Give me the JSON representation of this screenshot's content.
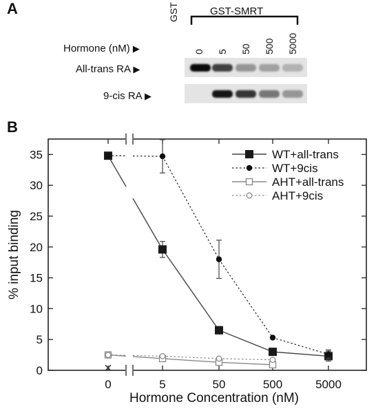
{
  "panelA": {
    "letter": "A",
    "lanes": [
      "GST",
      "0",
      "5",
      "50",
      "500",
      "5000"
    ],
    "group_label": "GST-SMRT",
    "row_labels": [
      "Hormone (nM)",
      "All-trans RA",
      "9-cis RA"
    ],
    "arrow_glyph": "▶",
    "all_trans_band_intensity": [
      0,
      1.0,
      0.75,
      0.35,
      0.3,
      0.22
    ],
    "nine_cis_band_intensity": [
      0,
      0,
      0.95,
      0.8,
      0.5,
      0.35
    ]
  },
  "panelB": {
    "letter": "B"
  },
  "chart_data": {
    "type": "line",
    "xlabel": "Hormone Concentration (nM)",
    "ylabel": "% input binding",
    "categories": [
      "0",
      "5",
      "50",
      "500",
      "5000"
    ],
    "ylim": [
      0,
      37.5
    ],
    "yticks": [
      0,
      5,
      10,
      15,
      20,
      25,
      30,
      35
    ],
    "legend_position": "top-right",
    "axis_break_between": [
      "0",
      "5"
    ],
    "series": [
      {
        "name": "WT+all-trans",
        "marker": "filled-square",
        "line": "solid",
        "values": [
          34.8,
          19.6,
          6.5,
          3.0,
          2.3
        ],
        "error": [
          0,
          1.3,
          0.6,
          0.5,
          0.8
        ],
        "color": "#444444"
      },
      {
        "name": "WT+9cis",
        "marker": "filled-circle",
        "line": "dotted",
        "values": [
          34.8,
          34.7,
          18.0,
          5.3,
          2.6
        ],
        "error": [
          0,
          2.7,
          3.1,
          0,
          0.7
        ],
        "color": "#222222"
      },
      {
        "name": "AHT+all-trans",
        "marker": "open-square",
        "line": "solid",
        "values": [
          2.5,
          1.9,
          1.3,
          0.9,
          null
        ],
        "error": [
          0,
          0,
          0,
          0,
          0
        ],
        "color": "#888888"
      },
      {
        "name": "AHT+9cis",
        "marker": "open-circle",
        "line": "dotted",
        "values": [
          2.5,
          2.3,
          1.9,
          1.7,
          null
        ],
        "error": [
          0,
          0,
          0,
          0,
          0
        ],
        "color": "#888888"
      }
    ],
    "extra_points": [
      {
        "x": "0",
        "y": 0.4,
        "marker": "x"
      }
    ]
  }
}
